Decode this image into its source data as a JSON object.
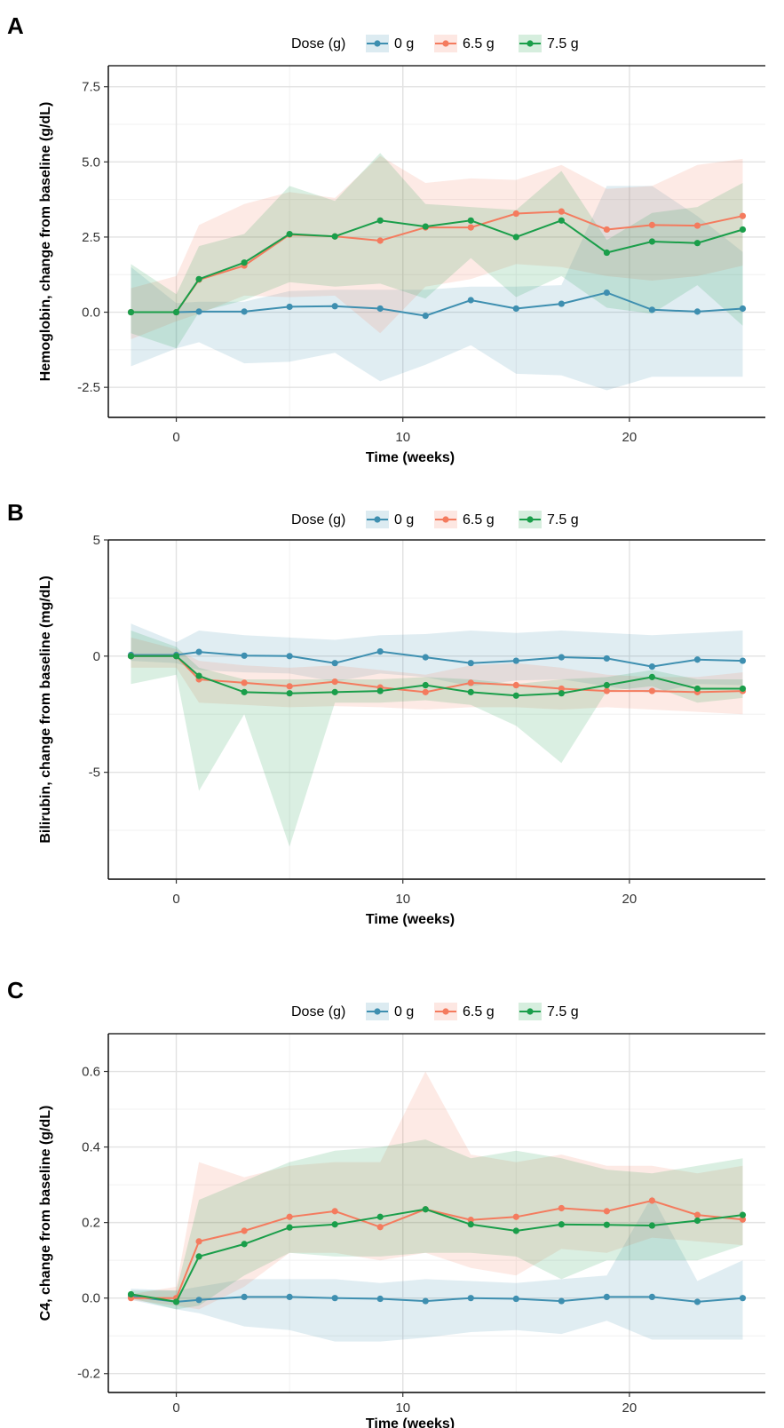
{
  "chart_data": [
    {
      "type": "line",
      "panel_label": "A",
      "legend_title": "Dose (g)",
      "legend_placement": "top",
      "xlabel": "Time (weeks)",
      "ylabel": "Hemoglobin, change from baseline (g/dL)",
      "xlim": [
        -3,
        26
      ],
      "ylim": [
        -3.5,
        8.2
      ],
      "xticks": [
        0,
        10,
        20
      ],
      "yticks": [
        -2.5,
        0.0,
        2.5,
        5.0,
        7.5
      ],
      "ytick_labels": [
        "-2.5",
        "0.0",
        "2.5",
        "5.0",
        "7.5"
      ],
      "x": [
        -2,
        0,
        1,
        3,
        5,
        7,
        9,
        11,
        13,
        15,
        17,
        19,
        21,
        23,
        25
      ],
      "grid": true,
      "series": [
        {
          "name": "0 g",
          "color": "#3e8fb0",
          "values": [
            0.0,
            0.0,
            0.02,
            0.02,
            0.18,
            0.2,
            0.12,
            -0.12,
            0.4,
            0.12,
            0.28,
            0.65,
            0.08,
            0.02,
            0.12
          ],
          "lower": [
            -1.8,
            -1.2,
            -1.0,
            -1.7,
            -1.65,
            -1.35,
            -2.3,
            -1.75,
            -1.1,
            -2.05,
            -2.1,
            -2.6,
            -2.15,
            -2.15,
            -2.15
          ],
          "upper": [
            1.5,
            0.3,
            0.35,
            0.35,
            0.7,
            0.75,
            0.75,
            0.75,
            0.85,
            0.85,
            0.9,
            4.2,
            4.2,
            3.2,
            2.0
          ]
        },
        {
          "name": "6.5 g",
          "color": "#f47b5e",
          "values": [
            0.0,
            0.0,
            1.08,
            1.55,
            2.58,
            2.52,
            2.38,
            2.82,
            2.82,
            3.28,
            3.35,
            2.75,
            2.9,
            2.88,
            3.2
          ],
          "lower": [
            -0.9,
            -0.3,
            -0.05,
            0.55,
            0.5,
            0.55,
            -0.7,
            0.85,
            1.1,
            1.6,
            1.5,
            1.2,
            1.05,
            1.2,
            1.55
          ],
          "upper": [
            0.8,
            1.2,
            2.9,
            3.6,
            4.0,
            3.8,
            5.2,
            4.3,
            4.45,
            4.4,
            4.9,
            4.1,
            4.2,
            4.9,
            5.1
          ]
        },
        {
          "name": "7.5 g",
          "color": "#1a9e4a",
          "values": [
            0.0,
            0.0,
            1.1,
            1.65,
            2.6,
            2.52,
            3.05,
            2.85,
            3.05,
            2.5,
            3.05,
            1.98,
            2.35,
            2.3,
            2.75
          ],
          "lower": [
            -0.7,
            -1.2,
            0.0,
            0.4,
            1.0,
            0.85,
            0.95,
            0.45,
            1.8,
            0.5,
            1.2,
            0.15,
            -0.05,
            0.9,
            -0.45
          ],
          "upper": [
            1.6,
            0.6,
            2.2,
            2.6,
            4.2,
            3.7,
            5.3,
            3.6,
            3.5,
            3.4,
            4.7,
            2.4,
            3.3,
            3.5,
            4.3
          ]
        }
      ]
    },
    {
      "type": "line",
      "panel_label": "B",
      "legend_title": "Dose (g)",
      "legend_placement": "top",
      "xlabel": "Time (weeks)",
      "ylabel": "Bilirubin, change from baseline (mg/dL)",
      "xlim": [
        -3,
        26
      ],
      "ylim": [
        -9.6,
        5.0
      ],
      "xticks": [
        0,
        10,
        20
      ],
      "yticks": [
        -5,
        0,
        5
      ],
      "ytick_labels": [
        "-5",
        "0",
        "5"
      ],
      "x": [
        -2,
        0,
        1,
        3,
        5,
        7,
        9,
        11,
        13,
        15,
        17,
        19,
        21,
        23,
        25
      ],
      "grid": true,
      "series": [
        {
          "name": "0 g",
          "color": "#3e8fb0",
          "values": [
            0.05,
            0.05,
            0.18,
            0.02,
            0.0,
            -0.3,
            0.2,
            -0.05,
            -0.3,
            -0.2,
            -0.05,
            -0.1,
            -0.45,
            -0.15,
            -0.2
          ],
          "lower": [
            -0.2,
            -0.3,
            -0.6,
            -0.7,
            -0.75,
            -1.1,
            -0.75,
            -0.9,
            -1.3,
            -1.05,
            -1.0,
            -1.3,
            -1.6,
            -1.2,
            -1.25
          ],
          "upper": [
            1.4,
            0.6,
            1.1,
            0.9,
            0.8,
            0.7,
            0.9,
            0.95,
            1.1,
            1.0,
            1.1,
            1.0,
            0.9,
            1.0,
            1.1
          ]
        },
        {
          "name": "6.5 g",
          "color": "#f47b5e",
          "values": [
            0.0,
            0.0,
            -1.0,
            -1.15,
            -1.3,
            -1.1,
            -1.35,
            -1.55,
            -1.15,
            -1.25,
            -1.4,
            -1.5,
            -1.5,
            -1.55,
            -1.5
          ],
          "lower": [
            -0.5,
            -0.5,
            -2.0,
            -2.1,
            -2.2,
            -2.15,
            -2.2,
            -2.3,
            -2.2,
            -2.2,
            -2.3,
            -2.2,
            -2.3,
            -2.4,
            -2.5
          ],
          "upper": [
            0.8,
            0.3,
            -0.2,
            -0.4,
            -0.5,
            -0.4,
            -0.6,
            -0.8,
            -0.4,
            -0.3,
            -0.5,
            -0.8,
            -0.9,
            -0.9,
            -0.7
          ]
        },
        {
          "name": "7.5 g",
          "color": "#1a9e4a",
          "values": [
            0.0,
            0.0,
            -0.85,
            -1.55,
            -1.6,
            -1.55,
            -1.5,
            -1.25,
            -1.55,
            -1.7,
            -1.6,
            -1.25,
            -0.9,
            -1.4,
            -1.4
          ],
          "lower": [
            -1.2,
            -0.8,
            -5.8,
            -2.5,
            -8.2,
            -2.0,
            -2.0,
            -1.9,
            -2.1,
            -3.0,
            -4.6,
            -1.5,
            -1.3,
            -2.0,
            -1.8
          ],
          "upper": [
            1.1,
            0.4,
            -0.5,
            -1.0,
            -1.0,
            -1.0,
            -1.0,
            -0.9,
            -1.0,
            -1.2,
            -1.0,
            -0.9,
            -0.6,
            -1.0,
            -1.0
          ]
        }
      ]
    },
    {
      "type": "line",
      "panel_label": "C",
      "legend_title": "Dose (g)",
      "legend_placement": "top",
      "xlabel": "Time (weeks)",
      "ylabel": "C4, change from baseline (g/dL)",
      "xlim": [
        -3,
        26
      ],
      "ylim": [
        -0.25,
        0.7
      ],
      "xticks": [
        0,
        10,
        20
      ],
      "yticks": [
        -0.2,
        0.0,
        0.2,
        0.4,
        0.6
      ],
      "ytick_labels": [
        "-0.2",
        "0.0",
        "0.2",
        "0.4",
        "0.6"
      ],
      "x": [
        -2,
        0,
        1,
        3,
        5,
        7,
        9,
        11,
        13,
        15,
        17,
        19,
        21,
        23,
        25
      ],
      "grid": true,
      "series": [
        {
          "name": "0 g",
          "color": "#3e8fb0",
          "values": [
            0.005,
            -0.01,
            -0.005,
            0.003,
            0.003,
            0.0,
            -0.002,
            -0.008,
            0.0,
            -0.002,
            -0.008,
            0.003,
            0.003,
            -0.01,
            0.0
          ],
          "lower": [
            -0.005,
            -0.03,
            -0.04,
            -0.075,
            -0.085,
            -0.115,
            -0.115,
            -0.105,
            -0.09,
            -0.085,
            -0.095,
            -0.06,
            -0.11,
            -0.11,
            -0.11
          ],
          "upper": [
            0.025,
            0.02,
            0.03,
            0.05,
            0.05,
            0.05,
            0.04,
            0.05,
            0.045,
            0.04,
            0.05,
            0.06,
            0.27,
            0.045,
            0.1
          ]
        },
        {
          "name": "6.5 g",
          "color": "#f47b5e",
          "values": [
            0.0,
            0.0,
            0.15,
            0.178,
            0.215,
            0.23,
            0.188,
            0.235,
            0.207,
            0.215,
            0.238,
            0.23,
            0.258,
            0.22,
            0.208
          ],
          "lower": [
            -0.005,
            -0.02,
            -0.03,
            0.03,
            0.12,
            0.12,
            0.1,
            0.12,
            0.08,
            0.06,
            0.13,
            0.12,
            0.16,
            0.15,
            0.14
          ],
          "upper": [
            0.01,
            0.03,
            0.36,
            0.32,
            0.35,
            0.36,
            0.36,
            0.6,
            0.38,
            0.36,
            0.38,
            0.35,
            0.35,
            0.33,
            0.35
          ]
        },
        {
          "name": "7.5 g",
          "color": "#1a9e4a",
          "values": [
            0.01,
            -0.01,
            0.11,
            0.143,
            0.187,
            0.195,
            0.215,
            0.235,
            0.195,
            0.178,
            0.195,
            0.194,
            0.192,
            0.205,
            0.22
          ],
          "lower": [
            0.0,
            -0.03,
            -0.02,
            0.06,
            0.12,
            0.11,
            0.11,
            0.12,
            0.12,
            0.11,
            0.05,
            0.1,
            0.1,
            0.1,
            0.14
          ],
          "upper": [
            0.02,
            0.02,
            0.26,
            0.31,
            0.36,
            0.39,
            0.4,
            0.42,
            0.37,
            0.39,
            0.37,
            0.34,
            0.33,
            0.35,
            0.37
          ]
        }
      ]
    }
  ]
}
